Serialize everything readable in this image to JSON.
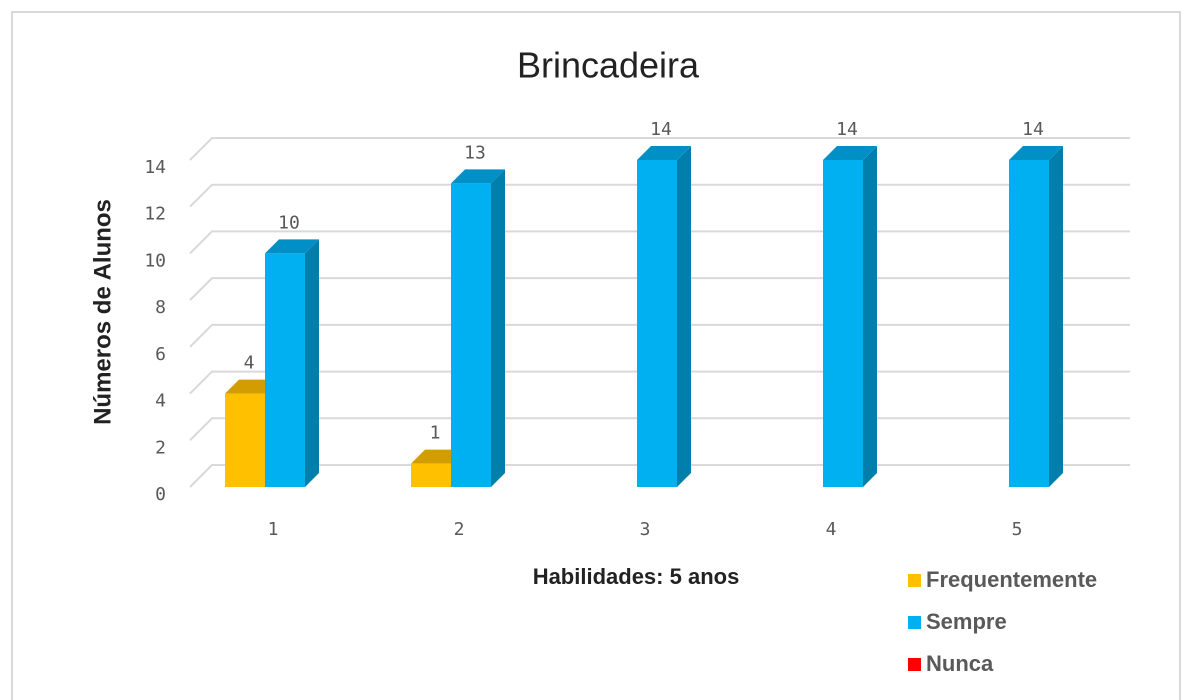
{
  "chart_data": {
    "type": "bar3d",
    "title": "Brincadeira",
    "x_label": "Habilidades: 5 anos",
    "y_label": "Números de Alunos",
    "categories": [
      "1",
      "2",
      "3",
      "4",
      "5"
    ],
    "series": [
      {
        "name": "Frequentemente",
        "color": "#FFC000",
        "values": [
          4,
          1,
          null,
          null,
          null
        ]
      },
      {
        "name": "Sempre",
        "color": "#00B0F0",
        "values": [
          10,
          13,
          14,
          14,
          14
        ]
      },
      {
        "name": "Nunca",
        "color": "#FF0000",
        "values": [
          null,
          null,
          null,
          null,
          null
        ]
      }
    ],
    "ylim": [
      0,
      14
    ],
    "yticks": [
      0,
      2,
      4,
      6,
      8,
      10,
      12,
      14
    ],
    "grid": true,
    "legend": "bottom-right"
  }
}
